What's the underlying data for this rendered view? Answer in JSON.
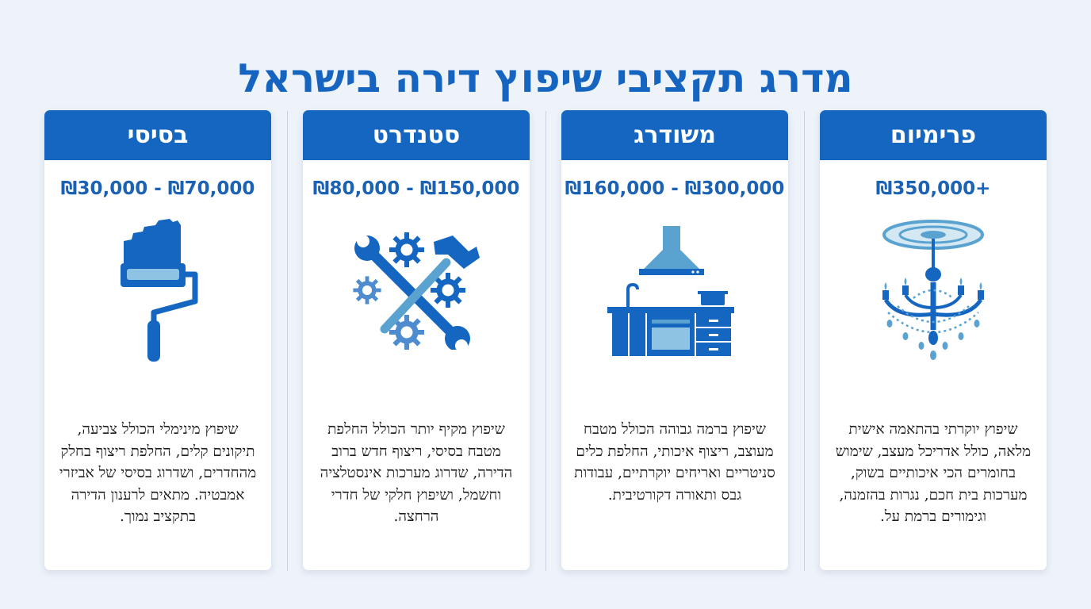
{
  "title": "מדרג תקציבי שיפוץ דירה בישראל",
  "tiers": [
    {
      "name": "בסיסי",
      "price": "₪30,000 - ₪70,000",
      "icon": "paint-roller-icon",
      "description": "שיפוץ מינימלי הכולל צביעה, תיקונים קלים, החלפת ריצוף בחלק מהחדרים, ושדרוג בסיסי של אביזרי אמבטיה. מתאים לרענון הדירה בתקציב נמוך."
    },
    {
      "name": "סטנדרט",
      "price": "₪80,000 - ₪150,000",
      "icon": "tools-gears-icon",
      "description": "שיפוץ מקיף יותר הכולל החלפת מטבח בסיסי, ריצוף חדש ברוב הדירה, שדרוג מערכות אינסטלציה וחשמל, ושיפוץ חלקי של חדרי הרחצה."
    },
    {
      "name": "משודרג",
      "price": "₪160,000 - ₪300,000",
      "icon": "kitchen-icon",
      "description": "שיפוץ ברמה גבוהה הכולל מטבח מעוצב, ריצוף איכותי, החלפת כלים סניטריים ואריחים יוקרתיים, עבודות גבס ותאורה דקורטיבית."
    },
    {
      "name": "פרימיום",
      "price": "₪350,000+",
      "icon": "chandelier-icon",
      "description": "שיפוץ יוקרתי בהתאמה אישית מלאה, כולל אדריכל מעצב, שימוש בחומרים הכי איכותיים בשוק, מערכות בית חכם, נגרות בהזמנה, וגימורים ברמת על."
    }
  ],
  "colors": {
    "primary": "#1566c0",
    "price": "#1c62b4",
    "background": "#eef3fa",
    "icon_light": "#5aa3d0"
  }
}
